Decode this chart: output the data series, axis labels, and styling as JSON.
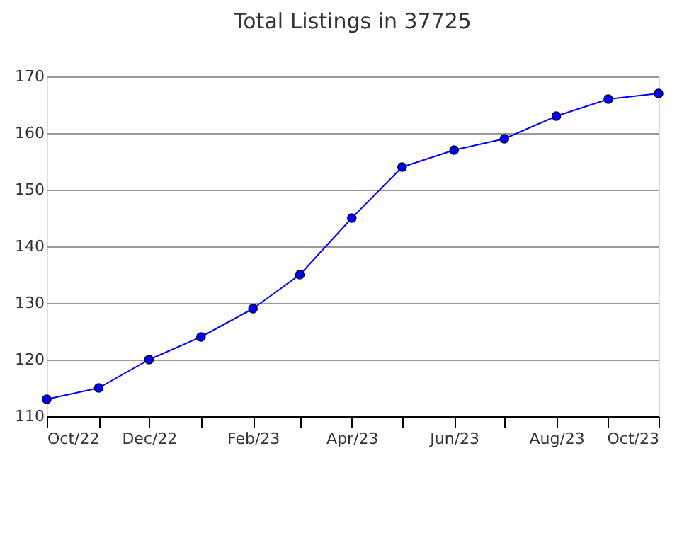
{
  "chart_data": {
    "type": "line",
    "title": "Total Listings in 37725",
    "x": [
      "2022-10",
      "2022-11",
      "2022-12",
      "2023-01",
      "2023-02",
      "2023-03",
      "2023-04",
      "2023-05",
      "2023-06",
      "2023-07",
      "2023-08",
      "2023-09",
      "2023-10"
    ],
    "series": [
      {
        "color": "#0000ff",
        "values": [
          113,
          115,
          120,
          124,
          129,
          135,
          145,
          154,
          157,
          159,
          163,
          166,
          167
        ]
      }
    ],
    "xlim": [
      "2022-10",
      "2023-10"
    ],
    "xticks": [
      {
        "value": "2022-10",
        "label": "Oct/22"
      },
      {
        "value": "2022-11",
        "label": null
      },
      {
        "value": "2022-12",
        "label": "Dec/22"
      },
      {
        "value": "2023-01",
        "label": null
      },
      {
        "value": "2023-02",
        "label": "Feb/23"
      },
      {
        "value": "2023-03",
        "label": null
      },
      {
        "value": "2023-04",
        "label": "Apr/23"
      },
      {
        "value": "2023-05",
        "label": null
      },
      {
        "value": "2023-06",
        "label": "Jun/23"
      },
      {
        "value": "2023-07",
        "label": null
      },
      {
        "value": "2023-08",
        "label": "Aug/23"
      },
      {
        "value": "2023-09",
        "label": null
      },
      {
        "value": "2023-10",
        "label": "Oct/23"
      }
    ],
    "ylim": [
      110,
      170
    ],
    "yticks": [
      110,
      120,
      130,
      140,
      150,
      160,
      170
    ],
    "grid": "y",
    "marker": "circle",
    "line_style": "solid",
    "legend": false
  }
}
